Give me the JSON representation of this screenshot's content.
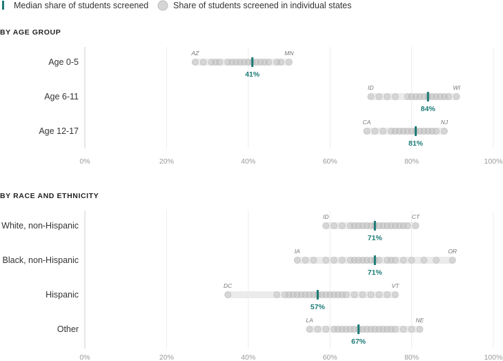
{
  "legend": {
    "median_label": "Median share of students screened",
    "states_label": "Share of students screened in individual states",
    "median_color": "#1b7a75",
    "dot_color": "#c8c8c8"
  },
  "chart_data": [
    {
      "type": "scatter",
      "title": "BY AGE GROUP",
      "xlim": [
        0,
        100
      ],
      "x_ticks": [
        "0%",
        "20%",
        "40%",
        "60%",
        "80%",
        "100%"
      ],
      "grid": true,
      "rows": [
        {
          "category": "Age 0-5",
          "min": 27,
          "max": 50,
          "median": 41,
          "min_state": "AZ",
          "max_state": "MN",
          "median_label": "41%",
          "points": [
            27,
            29,
            31,
            32,
            33,
            35,
            36,
            37,
            38,
            39,
            40,
            41,
            42,
            43,
            44,
            45,
            47,
            48,
            50
          ]
        },
        {
          "category": "Age 6-11",
          "min": 70,
          "max": 91,
          "median": 84,
          "min_state": "ID",
          "max_state": "WI",
          "median_label": "84%",
          "points": [
            70,
            72,
            74,
            76,
            79,
            80,
            81,
            82,
            83,
            84,
            85,
            86,
            87,
            88,
            89,
            91
          ]
        },
        {
          "category": "Age 12-17",
          "min": 69,
          "max": 88,
          "median": 81,
          "min_state": "CA",
          "max_state": "NJ",
          "median_label": "81%",
          "points": [
            69,
            71,
            73,
            75,
            76,
            77,
            78,
            79,
            80,
            81,
            82,
            83,
            84,
            85,
            86,
            88
          ]
        }
      ]
    },
    {
      "type": "scatter",
      "title": "BY RACE AND ETHNICITY",
      "xlim": [
        0,
        100
      ],
      "x_ticks": [
        "0%",
        "20%",
        "40%",
        "60%",
        "80%",
        "100%"
      ],
      "grid": true,
      "rows": [
        {
          "category": "White, non-Hispanic",
          "min": 59,
          "max": 81,
          "median": 71,
          "min_state": "ID",
          "max_state": "CT",
          "median_label": "71%",
          "points": [
            59,
            61,
            63,
            65,
            66,
            67,
            68,
            69,
            70,
            71,
            72,
            73,
            74,
            75,
            76,
            77,
            78,
            79,
            81
          ]
        },
        {
          "category": "Black, non-Hispanic",
          "min": 52,
          "max": 90,
          "median": 71,
          "min_state": "IA",
          "max_state": "OR",
          "median_label": "71%",
          "points": [
            52,
            54,
            56,
            59,
            61,
            63,
            65,
            66,
            67,
            68,
            69,
            70,
            71,
            72,
            74,
            75,
            76,
            78,
            80,
            83,
            86,
            90
          ]
        },
        {
          "category": "Hispanic",
          "min": 35,
          "max": 76,
          "median": 57,
          "min_state": "DC",
          "max_state": "VT",
          "median_label": "57%",
          "points": [
            35,
            47,
            49,
            50,
            51,
            52,
            53,
            54,
            55,
            56,
            57,
            58,
            59,
            60,
            61,
            62,
            63,
            64,
            66,
            68,
            70,
            72,
            74,
            76
          ]
        },
        {
          "category": "Other",
          "min": 55,
          "max": 82,
          "median": 67,
          "min_state": "LA",
          "max_state": "NE",
          "median_label": "67%",
          "points": [
            55,
            57,
            59,
            61,
            62,
            63,
            64,
            65,
            66,
            67,
            68,
            69,
            70,
            71,
            72,
            73,
            74,
            75,
            76,
            78,
            80,
            82
          ]
        }
      ]
    }
  ]
}
